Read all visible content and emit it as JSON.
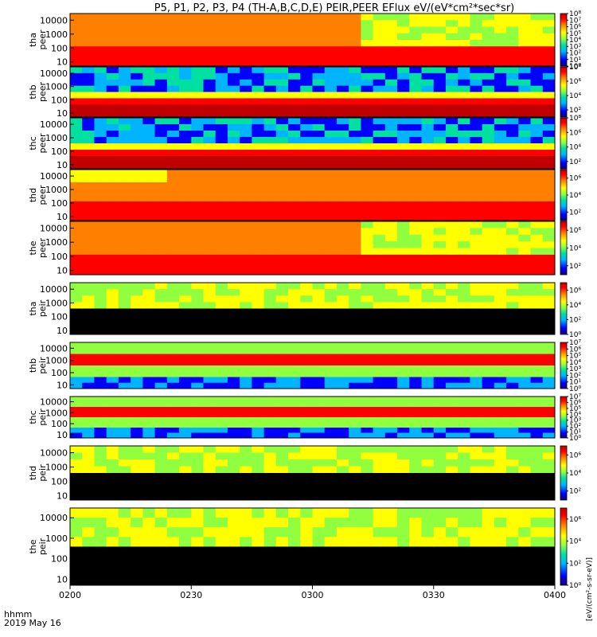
{
  "title": "P5, P1, P2, P3, P4 (TH-A,B,C,D,E) PEIR,PEER EFlux eV/(eV*cm²*sec*sr)",
  "x_axis": {
    "footer_line1": "hhmm",
    "footer_line2": "2019 May 16",
    "ticks": [
      "0200",
      "0230",
      "0300",
      "0330",
      "0400"
    ]
  },
  "colorbar_unit_label": "[eV/(cm²-s-sr-eV)]",
  "colors": {
    "background": "#ffffff",
    "no_data": "#000000",
    "gap": "#ffffff",
    "colormap": [
      "#1a0070",
      "#0000ff",
      "#00b4ff",
      "#00e0a0",
      "#90ff40",
      "#ffff00",
      "#ff8000",
      "#ff0000",
      "#c00000"
    ]
  },
  "chart_data": {
    "type": "heatmap",
    "x_range": [
      "02:00",
      "04:00"
    ],
    "y_scale": "log",
    "panels": [
      {
        "probe": "tha",
        "species": "peer",
        "ylabel": [
          "tha",
          "peer"
        ],
        "yticks": [
          "10000",
          "1000",
          "100",
          "10"
        ],
        "ylim": [
          5,
          30000
        ],
        "cb_ticks": [
          "10⁸",
          "10⁷",
          "10⁶",
          "10⁵",
          "10⁴",
          "10³",
          "10²",
          "10¹",
          "10⁰"
        ],
        "cb_range_exp": [
          0,
          8
        ]
      },
      {
        "probe": "thb",
        "species": "peer",
        "ylabel": [
          "thb",
          "peer"
        ],
        "yticks": [
          "10000",
          "1000",
          "100",
          "10"
        ],
        "ylim": [
          5,
          30000
        ],
        "cb_ticks": [
          "10⁸",
          "10⁶",
          "10⁴",
          "10²"
        ],
        "cb_range_exp": [
          1,
          8
        ]
      },
      {
        "probe": "thc",
        "species": "peer",
        "ylabel": [
          "thc",
          "peer"
        ],
        "yticks": [
          "10000",
          "1000",
          "100",
          "10"
        ],
        "ylim": [
          5,
          30000
        ],
        "cb_ticks": [
          "10⁸",
          "10⁶",
          "10⁴",
          "10²"
        ],
        "cb_range_exp": [
          1,
          8
        ]
      },
      {
        "probe": "thd",
        "species": "peer",
        "ylabel": [
          "thd",
          "peer"
        ],
        "yticks": [
          "10000",
          "1000",
          "100",
          "10"
        ],
        "ylim": [
          5,
          30000
        ],
        "cb_ticks": [
          "10⁶",
          "10⁴",
          "10²"
        ],
        "cb_range_exp": [
          1,
          7
        ]
      },
      {
        "probe": "the",
        "species": "peer",
        "ylabel": [
          "the",
          "peer"
        ],
        "yticks": [
          "10000",
          "1000",
          "100",
          "10"
        ],
        "ylim": [
          5,
          30000
        ],
        "cb_ticks": [
          "10⁶",
          "10⁴",
          "10²"
        ],
        "cb_range_exp": [
          1,
          7
        ]
      },
      {
        "probe": "tha",
        "species": "peir",
        "ylabel": [
          "tha",
          "peir"
        ],
        "yticks": [
          "10000",
          "1000",
          "100",
          "10"
        ],
        "ylim": [
          5,
          30000
        ],
        "cb_ticks": [
          "10⁶",
          "10⁴",
          "10²",
          "10⁰"
        ],
        "cb_range_exp": [
          0,
          7
        ]
      },
      {
        "probe": "thb",
        "species": "peir",
        "ylabel": [
          "thb",
          "peir"
        ],
        "yticks": [
          "10000",
          "1000",
          "100",
          "10"
        ],
        "ylim": [
          5,
          30000
        ],
        "cb_ticks": [
          "10⁷",
          "10⁶",
          "10⁵",
          "10⁴",
          "10³",
          "10²",
          "10¹",
          "10⁰"
        ],
        "cb_range_exp": [
          0,
          7
        ]
      },
      {
        "probe": "thc",
        "species": "peir",
        "ylabel": [
          "thc",
          "peir"
        ],
        "yticks": [
          "10000",
          "1000",
          "100",
          "10"
        ],
        "ylim": [
          5,
          30000
        ],
        "cb_ticks": [
          "10⁷",
          "10⁶",
          "10⁵",
          "10⁴",
          "10³",
          "10²",
          "10¹",
          "10⁰"
        ],
        "cb_range_exp": [
          0,
          7
        ]
      },
      {
        "probe": "thd",
        "species": "peir",
        "ylabel": [
          "thd",
          "peir"
        ],
        "yticks": [
          "10000",
          "1000",
          "100",
          "10"
        ],
        "ylim": [
          5,
          30000
        ],
        "cb_ticks": [
          "10⁶",
          "10⁴",
          "10²"
        ],
        "cb_range_exp": [
          1,
          7
        ]
      },
      {
        "probe": "the",
        "species": "peir",
        "ylabel": [
          "the",
          "peir"
        ],
        "yticks": [
          "10000",
          "1000",
          "100",
          "10"
        ],
        "ylim": [
          5,
          30000
        ],
        "cb_ticks": [
          "10⁶",
          "10⁴",
          "10²",
          "10⁰"
        ],
        "cb_range_exp": [
          0,
          7
        ]
      }
    ]
  }
}
